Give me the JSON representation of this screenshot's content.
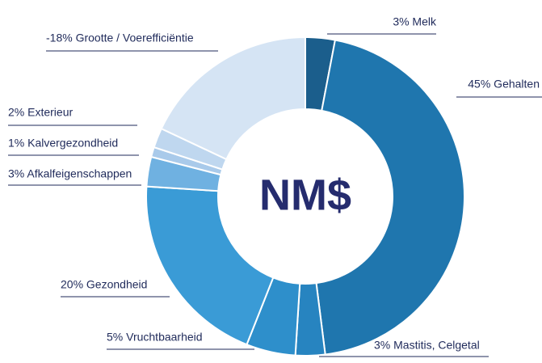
{
  "chart_data": {
    "type": "donut",
    "center_label": "NM$",
    "categories": [
      "3% Melk",
      "45% Gehalten",
      "3% Mastitis, Celgetal",
      "5% Vruchtbaarheid",
      "20% Gezondheid",
      "3% Afkalfeigenschappen",
      "1% Kalvergezondheid",
      "2% Exterieur",
      "-18% Grootte / Voerefficiëntie"
    ],
    "values": [
      3,
      45,
      3,
      5,
      20,
      3,
      1,
      2,
      -18
    ],
    "colors": [
      "#1b5e8c",
      "#1f76ae",
      "#2784c0",
      "#2e8fcb",
      "#3a9bd6",
      "#6fb1e1",
      "#a9caea",
      "#bfd7ef",
      "#d5e4f4"
    ]
  }
}
